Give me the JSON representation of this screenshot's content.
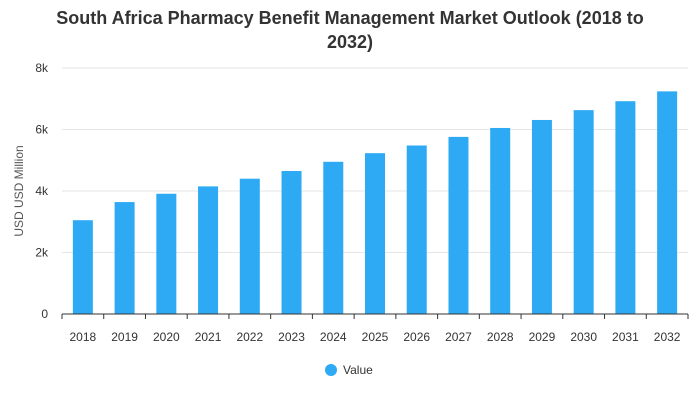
{
  "chart_data": {
    "type": "bar",
    "title_lines": [
      "South Africa Pharmacy Benefit Management Market Outlook (2018 to",
      "2032)"
    ],
    "xlabel": "",
    "ylabel": "USD USD Million",
    "ylim": [
      0,
      8000
    ],
    "yticks": [
      0,
      2000,
      4000,
      6000,
      8000
    ],
    "ytick_labels": [
      "0",
      "2k",
      "4k",
      "6k",
      "8k"
    ],
    "grid": true,
    "legend_position": "bottom",
    "categories": [
      "2018",
      "2019",
      "2020",
      "2021",
      "2022",
      "2023",
      "2024",
      "2025",
      "2026",
      "2027",
      "2028",
      "2029",
      "2030",
      "2031",
      "2032"
    ],
    "series": [
      {
        "name": "Value",
        "color": "#2eaaf4",
        "values": [
          3050,
          3640,
          3910,
          4150,
          4400,
          4650,
          4950,
          5230,
          5480,
          5760,
          6050,
          6310,
          6630,
          6920,
          7240
        ]
      }
    ]
  },
  "colors": {
    "bar": "#2eaaf4",
    "grid": "#e6e6e6",
    "axis": "#333333",
    "text": "#333333"
  }
}
